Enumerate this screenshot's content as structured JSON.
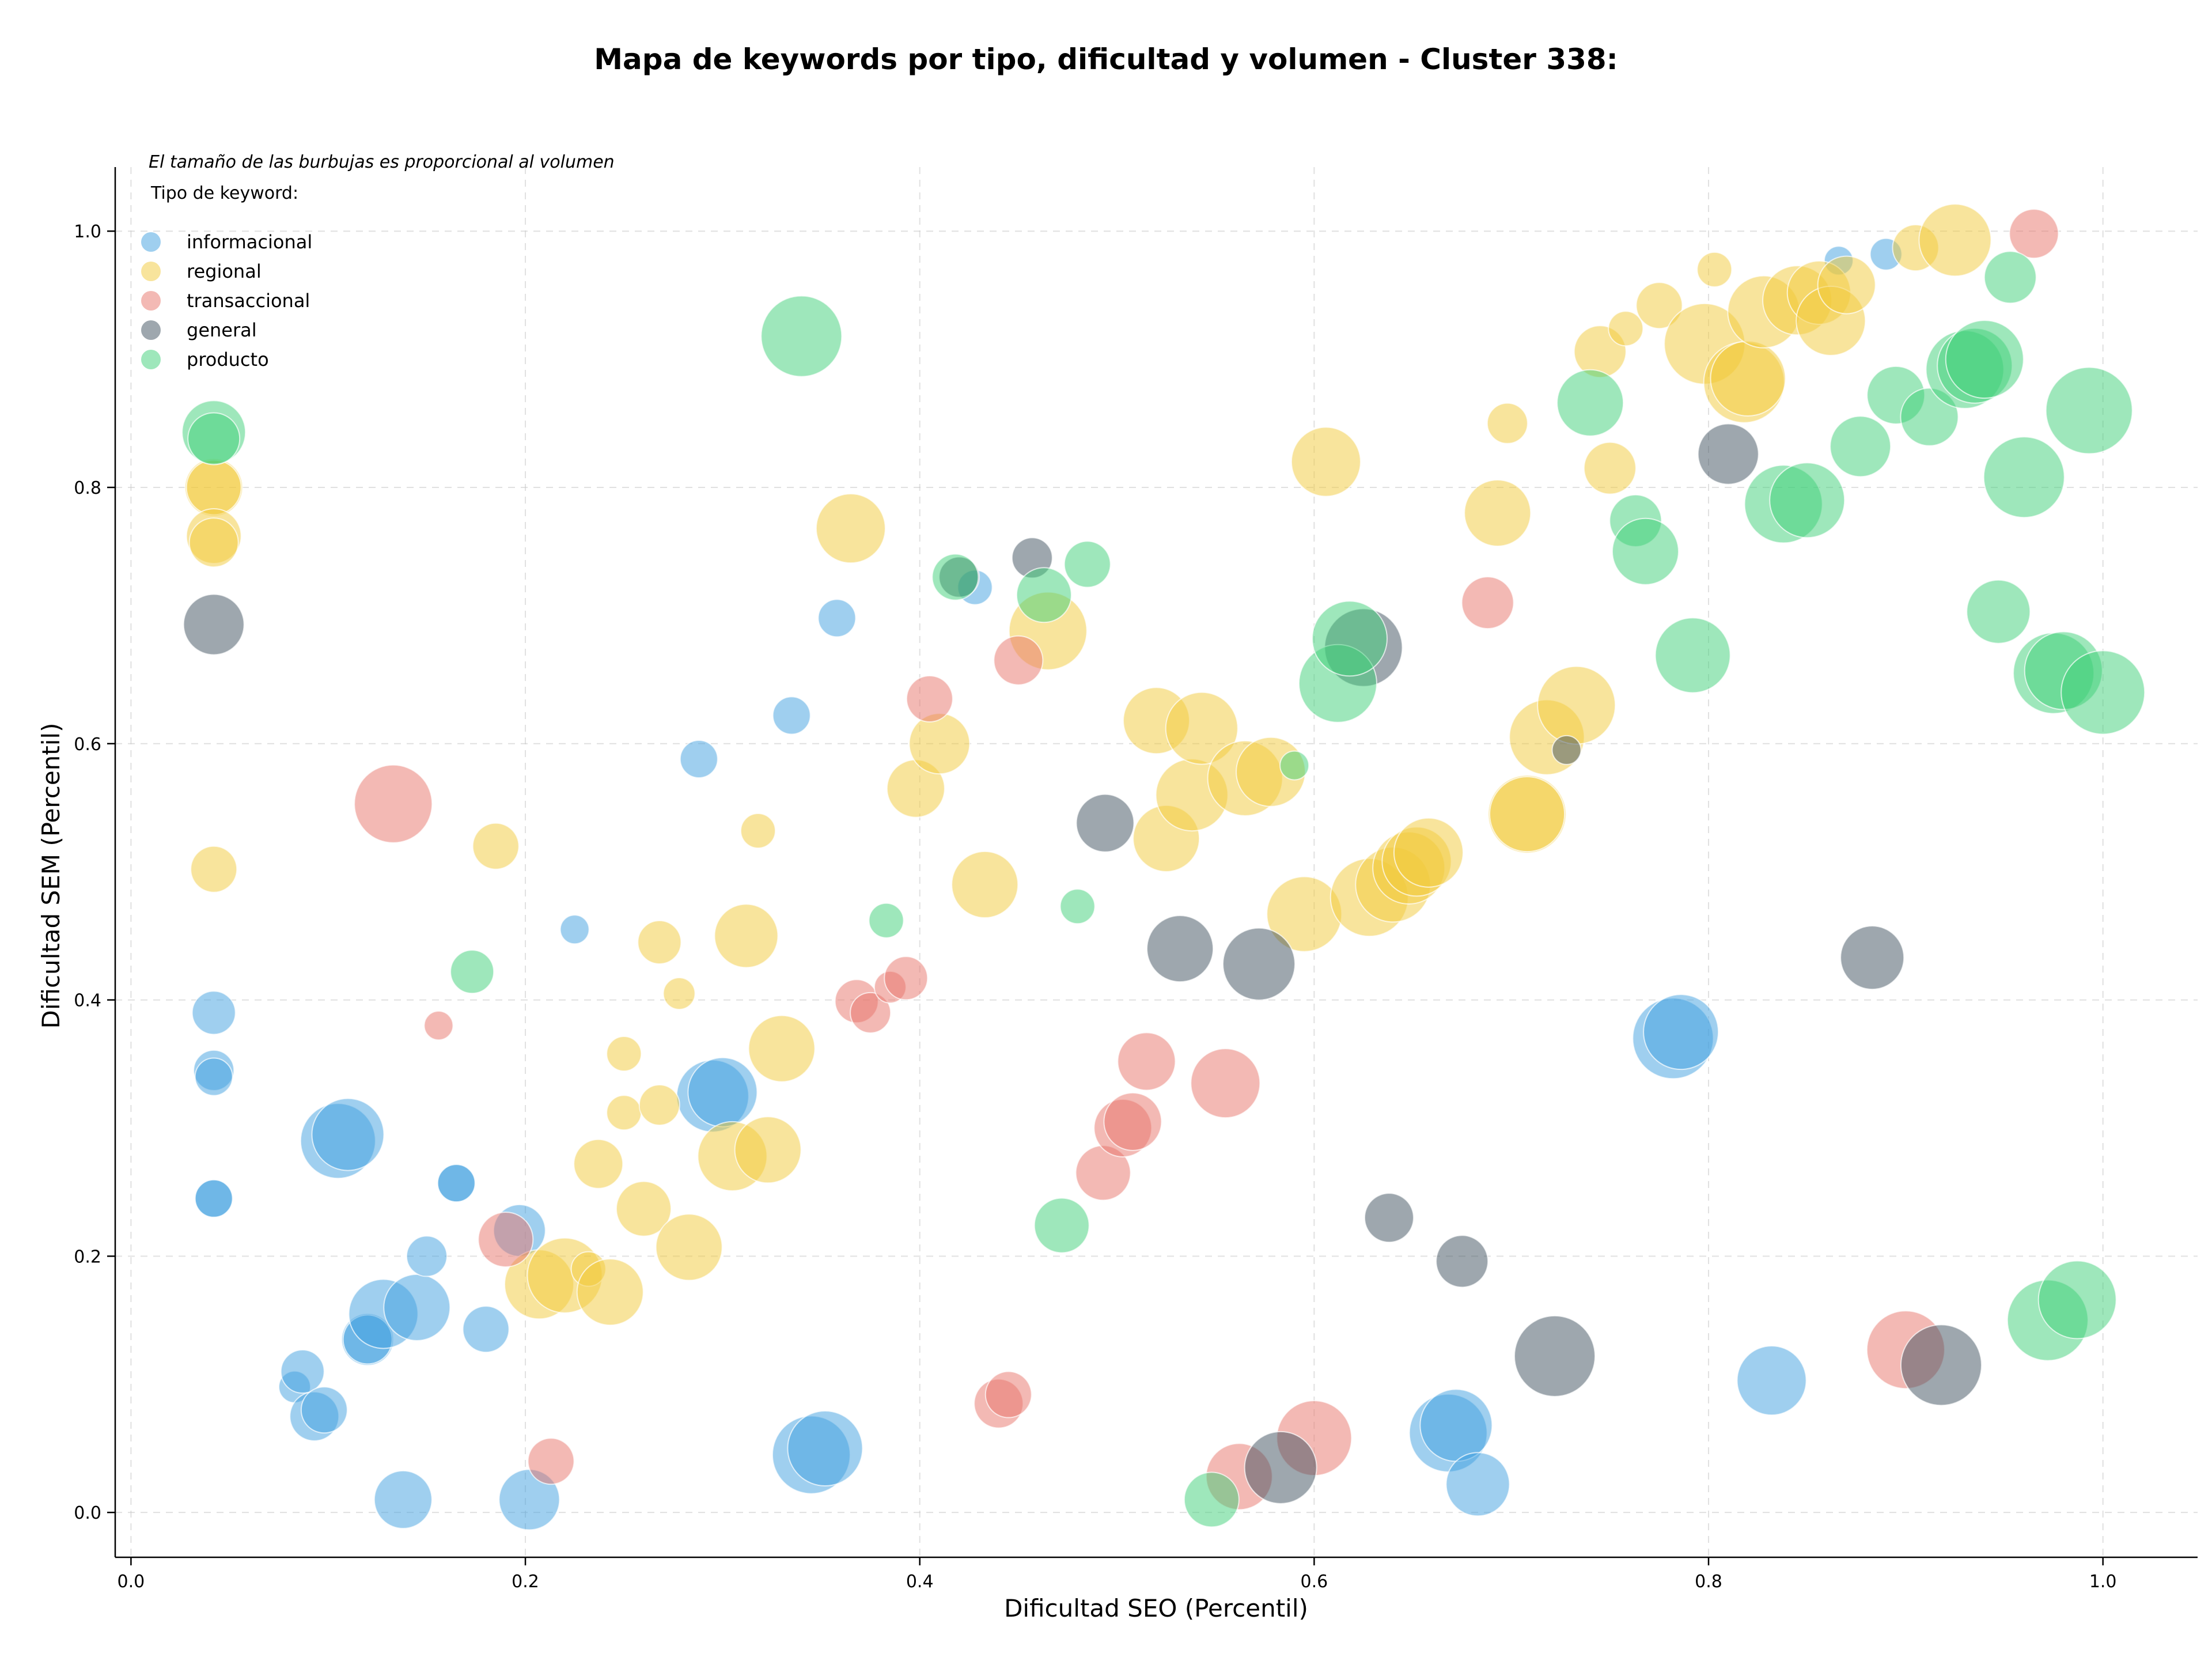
{
  "chart_data": {
    "type": "scatter",
    "title": "Mapa de keywords por tipo, dificultad y volumen - Cluster 338:",
    "xlabel": "Dificultad SEO (Percentil)",
    "ylabel": "Dificultad SEM (Percentil)",
    "xlim": [
      -0.008,
      1.048
    ],
    "ylim": [
      -0.035,
      1.05
    ],
    "xticks": [
      "0.0",
      "0.2",
      "0.4",
      "0.6",
      "0.8",
      "1.0"
    ],
    "yticks": [
      "0.0",
      "0.2",
      "0.4",
      "0.6",
      "0.8",
      "1.0"
    ],
    "grid": true,
    "note": "El tamaño de las burbujas es proporcional al volumen",
    "legend_title": "Tipo de keyword:",
    "legend_position": "top-left",
    "size_encodes": "volume (relative, 1-4)",
    "series": [
      {
        "name": "informacional",
        "color": "#3fa0e0",
        "points": [
          [
            0.042,
            0.39,
            1.5
          ],
          [
            0.042,
            0.345,
            1.4
          ],
          [
            0.042,
            0.34,
            1.3
          ],
          [
            0.042,
            0.245,
            1.3
          ],
          [
            0.042,
            0.245,
            1.3
          ],
          [
            0.083,
            0.098,
            1.1
          ],
          [
            0.087,
            0.11,
            1.5
          ],
          [
            0.093,
            0.075,
            1.7
          ],
          [
            0.098,
            0.08,
            1.6
          ],
          [
            0.105,
            0.29,
            2.6
          ],
          [
            0.11,
            0.295,
            2.5
          ],
          [
            0.12,
            0.135,
            1.8
          ],
          [
            0.12,
            0.135,
            1.7
          ],
          [
            0.128,
            0.155,
            2.4
          ],
          [
            0.138,
            0.01,
            2.0
          ],
          [
            0.145,
            0.16,
            2.3
          ],
          [
            0.15,
            0.2,
            1.4
          ],
          [
            0.165,
            0.257,
            1.3
          ],
          [
            0.165,
            0.257,
            1.3
          ],
          [
            0.18,
            0.143,
            1.6
          ],
          [
            0.197,
            0.22,
            1.8
          ],
          [
            0.202,
            0.01,
            2.1
          ],
          [
            0.225,
            0.455,
            1.0
          ],
          [
            0.288,
            0.588,
            1.3
          ],
          [
            0.295,
            0.325,
            2.5
          ],
          [
            0.3,
            0.328,
            2.4
          ],
          [
            0.335,
            0.622,
            1.3
          ],
          [
            0.345,
            0.045,
            2.7
          ],
          [
            0.352,
            0.05,
            2.6
          ],
          [
            0.358,
            0.698,
            1.3
          ],
          [
            0.428,
            0.722,
            1.2
          ],
          [
            0.668,
            0.062,
            2.7
          ],
          [
            0.672,
            0.068,
            2.5
          ],
          [
            0.683,
            0.022,
            2.2
          ],
          [
            0.782,
            0.37,
            2.8
          ],
          [
            0.786,
            0.375,
            2.6
          ],
          [
            0.832,
            0.103,
            2.4
          ],
          [
            0.866,
            0.977,
            1.0
          ],
          [
            0.89,
            0.982,
            1.1
          ]
        ]
      },
      {
        "name": "regional",
        "color": "#f2c93a",
        "points": [
          [
            0.042,
            0.8,
            2.0
          ],
          [
            0.042,
            0.8,
            1.9
          ],
          [
            0.042,
            0.762,
            1.9
          ],
          [
            0.042,
            0.757,
            1.7
          ],
          [
            0.042,
            0.502,
            1.6
          ],
          [
            0.185,
            0.52,
            1.6
          ],
          [
            0.207,
            0.178,
            2.4
          ],
          [
            0.22,
            0.185,
            2.6
          ],
          [
            0.232,
            0.19,
            1.2
          ],
          [
            0.237,
            0.272,
            1.7
          ],
          [
            0.243,
            0.172,
            2.3
          ],
          [
            0.25,
            0.358,
            1.2
          ],
          [
            0.25,
            0.312,
            1.2
          ],
          [
            0.26,
            0.237,
            1.9
          ],
          [
            0.268,
            0.445,
            1.5
          ],
          [
            0.268,
            0.318,
            1.4
          ],
          [
            0.278,
            0.405,
            1.1
          ],
          [
            0.283,
            0.207,
            2.3
          ],
          [
            0.305,
            0.278,
            2.4
          ],
          [
            0.312,
            0.45,
            2.2
          ],
          [
            0.318,
            0.532,
            1.2
          ],
          [
            0.323,
            0.283,
            2.3
          ],
          [
            0.33,
            0.362,
            2.3
          ],
          [
            0.365,
            0.768,
            2.4
          ],
          [
            0.398,
            0.565,
            2.0
          ],
          [
            0.41,
            0.6,
            2.1
          ],
          [
            0.433,
            0.49,
            2.3
          ],
          [
            0.465,
            0.688,
            2.7
          ],
          [
            0.52,
            0.618,
            2.3
          ],
          [
            0.525,
            0.526,
            2.3
          ],
          [
            0.538,
            0.56,
            2.5
          ],
          [
            0.543,
            0.612,
            2.5
          ],
          [
            0.565,
            0.573,
            2.6
          ],
          [
            0.578,
            0.578,
            2.4
          ],
          [
            0.595,
            0.467,
            2.6
          ],
          [
            0.606,
            0.82,
            2.4
          ],
          [
            0.628,
            0.48,
            2.7
          ],
          [
            0.64,
            0.49,
            2.6
          ],
          [
            0.648,
            0.503,
            2.5
          ],
          [
            0.652,
            0.508,
            2.4
          ],
          [
            0.658,
            0.515,
            2.4
          ],
          [
            0.693,
            0.78,
            2.3
          ],
          [
            0.698,
            0.85,
            1.4
          ],
          [
            0.708,
            0.545,
            2.7
          ],
          [
            0.708,
            0.545,
            2.6
          ],
          [
            0.718,
            0.605,
            2.6
          ],
          [
            0.733,
            0.63,
            2.7
          ],
          [
            0.745,
            0.906,
            1.8
          ],
          [
            0.75,
            0.815,
            1.8
          ],
          [
            0.758,
            0.924,
            1.2
          ],
          [
            0.775,
            0.942,
            1.6
          ],
          [
            0.798,
            0.912,
            2.8
          ],
          [
            0.803,
            0.97,
            1.2
          ],
          [
            0.818,
            0.882,
            2.8
          ],
          [
            0.82,
            0.885,
            2.6
          ],
          [
            0.828,
            0.937,
            2.5
          ],
          [
            0.845,
            0.946,
            2.4
          ],
          [
            0.856,
            0.952,
            2.2
          ],
          [
            0.862,
            0.93,
            2.4
          ],
          [
            0.87,
            0.958,
            2.0
          ],
          [
            0.905,
            0.987,
            1.6
          ],
          [
            0.925,
            0.993,
            2.5
          ]
        ]
      },
      {
        "name": "transaccional",
        "color": "#e8736a",
        "points": [
          [
            0.133,
            0.553,
            2.7
          ],
          [
            0.156,
            0.38,
            1.0
          ],
          [
            0.19,
            0.213,
            1.9
          ],
          [
            0.213,
            0.04,
            1.6
          ],
          [
            0.368,
            0.399,
            1.5
          ],
          [
            0.375,
            0.39,
            1.4
          ],
          [
            0.385,
            0.41,
            1.1
          ],
          [
            0.393,
            0.417,
            1.5
          ],
          [
            0.405,
            0.635,
            1.6
          ],
          [
            0.44,
            0.085,
            1.7
          ],
          [
            0.445,
            0.092,
            1.6
          ],
          [
            0.45,
            0.665,
            1.7
          ],
          [
            0.493,
            0.265,
            1.9
          ],
          [
            0.503,
            0.3,
            2.0
          ],
          [
            0.508,
            0.305,
            2.0
          ],
          [
            0.515,
            0.352,
            2.0
          ],
          [
            0.555,
            0.335,
            2.4
          ],
          [
            0.562,
            0.028,
            2.3
          ],
          [
            0.6,
            0.058,
            2.6
          ],
          [
            0.688,
            0.71,
            1.8
          ],
          [
            0.9,
            0.127,
            2.7
          ],
          [
            0.965,
            0.998,
            1.7
          ]
        ]
      },
      {
        "name": "general",
        "color": "#3e4f5e",
        "points": [
          [
            0.042,
            0.693,
            2.1
          ],
          [
            0.42,
            0.73,
            1.4
          ],
          [
            0.457,
            0.745,
            1.4
          ],
          [
            0.494,
            0.538,
            2.0
          ],
          [
            0.532,
            0.44,
            2.3
          ],
          [
            0.572,
            0.428,
            2.5
          ],
          [
            0.583,
            0.035,
            2.5
          ],
          [
            0.625,
            0.675,
            2.7
          ],
          [
            0.638,
            0.23,
            1.7
          ],
          [
            0.675,
            0.196,
            1.8
          ],
          [
            0.722,
            0.122,
            2.8
          ],
          [
            0.728,
            0.595,
            1.0
          ],
          [
            0.81,
            0.826,
            2.1
          ],
          [
            0.883,
            0.433,
            2.2
          ],
          [
            0.918,
            0.115,
            2.8
          ]
        ]
      },
      {
        "name": "producto",
        "color": "#3ecf78",
        "points": [
          [
            0.042,
            0.843,
            2.2
          ],
          [
            0.042,
            0.838,
            1.8
          ],
          [
            0.173,
            0.422,
            1.5
          ],
          [
            0.34,
            0.918,
            2.8
          ],
          [
            0.383,
            0.462,
            1.2
          ],
          [
            0.418,
            0.73,
            1.6
          ],
          [
            0.463,
            0.716,
            1.9
          ],
          [
            0.472,
            0.224,
            1.9
          ],
          [
            0.48,
            0.473,
            1.2
          ],
          [
            0.485,
            0.74,
            1.6
          ],
          [
            0.548,
            0.01,
            1.9
          ],
          [
            0.59,
            0.583,
            1.0
          ],
          [
            0.612,
            0.647,
            2.7
          ],
          [
            0.618,
            0.682,
            2.6
          ],
          [
            0.74,
            0.866,
            2.3
          ],
          [
            0.763,
            0.774,
            1.8
          ],
          [
            0.768,
            0.75,
            2.3
          ],
          [
            0.792,
            0.669,
            2.6
          ],
          [
            0.838,
            0.787,
            2.7
          ],
          [
            0.85,
            0.79,
            2.6
          ],
          [
            0.877,
            0.832,
            2.1
          ],
          [
            0.895,
            0.872,
            2.0
          ],
          [
            0.912,
            0.855,
            2.0
          ],
          [
            0.93,
            0.892,
            2.7
          ],
          [
            0.935,
            0.895,
            2.6
          ],
          [
            0.94,
            0.9,
            2.7
          ],
          [
            0.947,
            0.703,
            2.2
          ],
          [
            0.953,
            0.964,
            1.8
          ],
          [
            0.96,
            0.808,
            2.8
          ],
          [
            0.972,
            0.15,
            2.8
          ],
          [
            0.975,
            0.655,
            2.8
          ],
          [
            0.98,
            0.657,
            2.7
          ],
          [
            0.987,
            0.166,
            2.7
          ],
          [
            0.993,
            0.86,
            3.0
          ],
          [
            1.0,
            0.64,
            2.9
          ]
        ]
      }
    ]
  }
}
